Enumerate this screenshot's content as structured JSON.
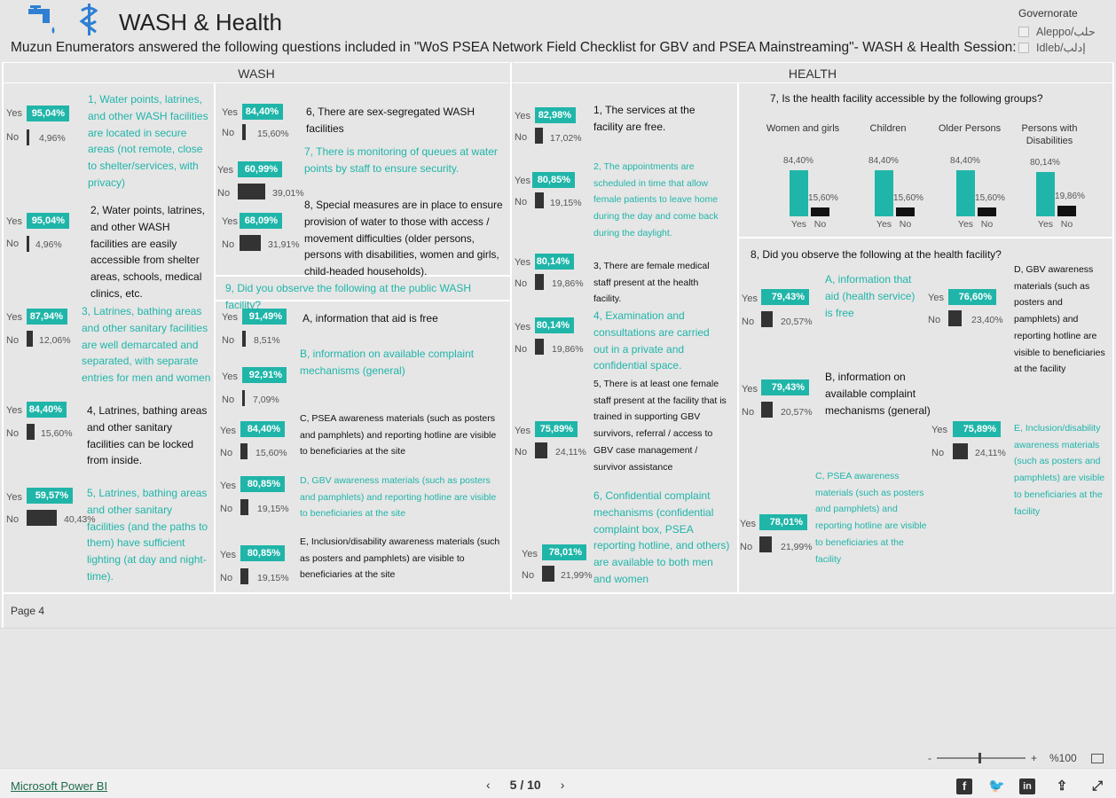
{
  "header": {
    "title": "WASH & Health",
    "subtitle": "Muzun Enumerators answered the following questions included in \"WoS PSEA Network Field Checklist for GBV and PSEA Mainstreaming\"- WASH & Health Session:"
  },
  "filter": {
    "label": "Governorate",
    "options": [
      "Aleppo/حلب",
      "Idleb/إدلب"
    ]
  },
  "sections": {
    "wash": "WASH",
    "health": "HEALTH"
  },
  "yes": "Yes",
  "no": "No",
  "wash": {
    "q1": {
      "yes": "95,04%",
      "no": "4,96%",
      "text": "1, Water points, latrines, and other WASH facilities are located in secure areas (not remote, close to shelter/services, with privacy)"
    },
    "q2": {
      "yes": "95,04%",
      "no": "4,96%",
      "text": "2, Water points, latrines, and other WASH facilities are easily accessible from shelter areas, schools, medical clinics, etc."
    },
    "q3": {
      "yes": "87,94%",
      "no": "12,06%",
      "text": "3, Latrines, bathing areas and other sanitary facilities are well demarcated and separated, with separate entries for men and women"
    },
    "q4": {
      "yes": "84,40%",
      "no": "15,60%",
      "text": "4, Latrines, bathing areas and other sanitary facilities can be locked from inside."
    },
    "q5": {
      "yes": "59,57%",
      "no": "40,43%",
      "text": "5, Latrines, bathing areas and other sanitary facilities (and the paths to them) have sufficient lighting (at day and night-time)."
    },
    "q6": {
      "yes": "84,40%",
      "no": "15,60%",
      "text": "6, There are sex-segregated WASH facilities"
    },
    "q7": {
      "yes": "60,99%",
      "no": "39,01%",
      "text": "7, There is monitoring of queues at water points by staff to ensure security."
    },
    "q8": {
      "yes": "68,09%",
      "no": "31,91%",
      "text": "8, Special measures are in place to ensure provision of water to those with access / movement difficulties (older persons, persons with disabilities, women and girls, child-headed households)."
    },
    "q9": {
      "title": "9, Did you observe the following at the public WASH facility?",
      "a": {
        "yes": "91,49%",
        "no": "8,51%",
        "text": "A, information that aid is free"
      },
      "b": {
        "yes": "92,91%",
        "no": "7,09%",
        "text": "B, information on available complaint mechanisms (general)"
      },
      "c": {
        "yes": "84,40%",
        "no": "15,60%",
        "text": "C, PSEA awareness materials (such as posters and pamphlets) and reporting hotline are visible to beneficiaries at the site"
      },
      "d": {
        "yes": "80,85%",
        "no": "19,15%",
        "text": "D, GBV awareness materials (such as posters and pamphlets) and reporting hotline are visible to beneficiaries at the site"
      },
      "e": {
        "yes": "80,85%",
        "no": "19,15%",
        "text": "E, Inclusion/disability awareness materials (such as posters and pamphlets) are visible to beneficiaries at the site"
      }
    }
  },
  "health": {
    "q1": {
      "yes": "82,98%",
      "no": "17,02%",
      "text": "1, The services at the facility are free."
    },
    "q2": {
      "yes": "80,85%",
      "no": "19,15%",
      "text": "2, The appointments are scheduled in time that allow female patients to leave home during the day and come back during the daylight."
    },
    "q3": {
      "yes": "80,14%",
      "no": "19,86%",
      "text": "3, There are female medical staff present at the health facility."
    },
    "q4": {
      "yes": "80,14%",
      "no": "19,86%",
      "text": "4, Examination and consultations are carried out in a private and confidential space."
    },
    "q5": {
      "yes": "75,89%",
      "no": "24,11%",
      "text": "5, There is at least one female staff present at the facility that is trained in supporting GBV survivors, referral / access to GBV case management / survivor assistance"
    },
    "q6": {
      "yes": "78,01%",
      "no": "21,99%",
      "text": "6, Confidential complaint mechanisms (confidential complaint box, PSEA reporting hotline, and others) are available to both men and women"
    },
    "q7": {
      "title": "7, Is the health facility accessible by the following groups?"
    },
    "q8": {
      "title": "8, Did you observe the following at the health facility?",
      "a": {
        "yes": "79,43%",
        "no": "20,57%",
        "text": "A, information that aid (health service) is free"
      },
      "b": {
        "yes": "79,43%",
        "no": "20,57%",
        "text": "B, information on available complaint mechanisms (general)"
      },
      "c": {
        "yes": "78,01%",
        "no": "21,99%",
        "text": "C, PSEA awareness materials (such as posters and pamphlets) and reporting hotline are visible to beneficiaries at the facility"
      },
      "d": {
        "yes": "76,60%",
        "no": "23,40%",
        "text": "D, GBV awareness materials (such as posters and pamphlets) and reporting hotline are visible to beneficiaries at the facility"
      },
      "e": {
        "yes": "75,89%",
        "no": "24,11%",
        "text": "E, Inclusion/disability awareness materials (such as posters and pamphlets) are visible to beneficiaries at the facility"
      }
    }
  },
  "chart_data": {
    "type": "bar",
    "title": "7, Is the health facility accessible by the following groups?",
    "categories": [
      "Women and girls",
      "Children",
      "Older Persons",
      "Persons with Disabilities"
    ],
    "series": [
      {
        "name": "Yes",
        "values": [
          84.4,
          84.4,
          84.4,
          80.14
        ],
        "labels": [
          "84,40%",
          "84,40%",
          "84,40%",
          "80,14%"
        ]
      },
      {
        "name": "No",
        "values": [
          15.6,
          15.6,
          15.6,
          19.86
        ],
        "labels": [
          "15,60%",
          "15,60%",
          "15,60%",
          "19,86%"
        ]
      }
    ],
    "ylim": [
      0,
      100
    ],
    "colors": {
      "Yes": "#20b5a9",
      "No": "#111111"
    }
  },
  "footer": {
    "page_tab": "Page 4",
    "brand": "Microsoft Power BI",
    "pager": "5 / 10",
    "zoom": "%100"
  },
  "colors": {
    "accent": "#20b5a9",
    "dark": "#333333",
    "background": "#e6e6e6"
  }
}
